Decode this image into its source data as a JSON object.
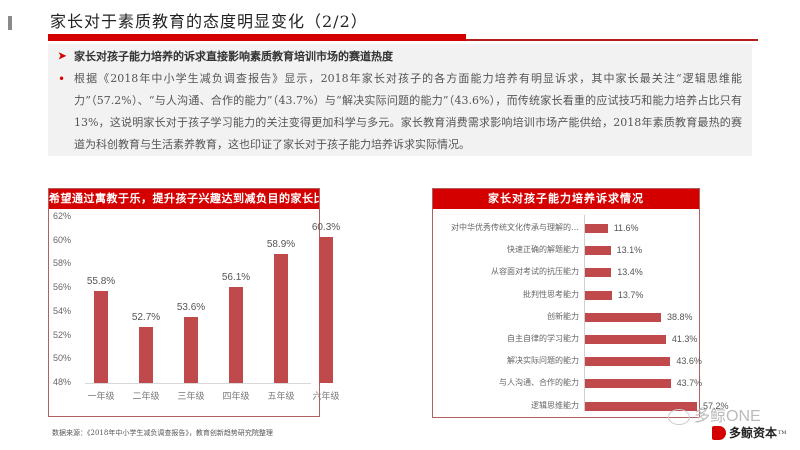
{
  "page": {
    "title": "家长对于素质教育的态度明显变化（2/2）"
  },
  "summary": {
    "heading": "家长对孩子能力培养的诉求直接影响素质教育培训市场的赛道热度",
    "paragraph": "根据《2018年中小学生减负调查报告》显示，2018年家长对孩子的各方面能力培养有明显诉求，其中家长最关注“逻辑思维能力”（57.2%）、“与人沟通、合作的能力”（43.7%）与“解决实际问题的能力”（43.6%），而传统家长看重的应试技巧和能力培养占比只有13%，这说明家长对于孩子学习能力的关注变得更加科学与多元。家长教育消费需求影响培训市场产能供给，2018年素质教育最热的赛道为科创教育与生活素养教育，这也印证了家长对于孩子能力培养诉求实际情况。"
  },
  "colors": {
    "accent": "#d40000",
    "bar": "#c0494b"
  },
  "source_note": "数据来源：《2018年中小学生减负调查报告》，教育创新趋势研究院整理",
  "watermark": {
    "text": "多鲸ONE",
    "brand": "多鲸资本",
    "tm": "TM"
  },
  "chart_data": [
    {
      "type": "bar",
      "title": "希望通过寓教于乐，提升孩子兴趣达到减负目的家长比例",
      "categories": [
        "一年级",
        "二年级",
        "三年级",
        "四年级",
        "五年级",
        "六年级"
      ],
      "values": [
        55.8,
        52.7,
        53.6,
        56.1,
        58.9,
        60.3
      ],
      "value_labels": [
        "55.8%",
        "52.7%",
        "53.6%",
        "56.1%",
        "58.9%",
        "60.3%"
      ],
      "ylim": [
        48,
        62
      ],
      "yticks": [
        "62%",
        "60%",
        "58%",
        "56%",
        "54%",
        "52%",
        "50%",
        "48%"
      ],
      "xlabel": "",
      "ylabel": "",
      "grid": false,
      "legend": null
    },
    {
      "type": "bar",
      "orientation": "horizontal",
      "title": "家长对孩子能力培养诉求情况",
      "categories": [
        "对中华优秀传统文化传承与理解的…",
        "快速正确的解题能力",
        "从容面对考试的抗压能力",
        "批判性思考能力",
        "创新能力",
        "自主自律的学习能力",
        "解决实际问题的能力",
        "与人沟通、合作的能力",
        "逻辑思维能力"
      ],
      "values": [
        11.6,
        13.1,
        13.4,
        13.7,
        38.8,
        41.3,
        43.6,
        43.7,
        57.2
      ],
      "value_labels": [
        "11.6%",
        "13.1%",
        "13.4%",
        "13.7%",
        "38.8%",
        "41.3%",
        "43.6%",
        "43.7%",
        "57.2%"
      ],
      "xlim": [
        0,
        57.2
      ],
      "grid": false,
      "legend": null
    }
  ]
}
